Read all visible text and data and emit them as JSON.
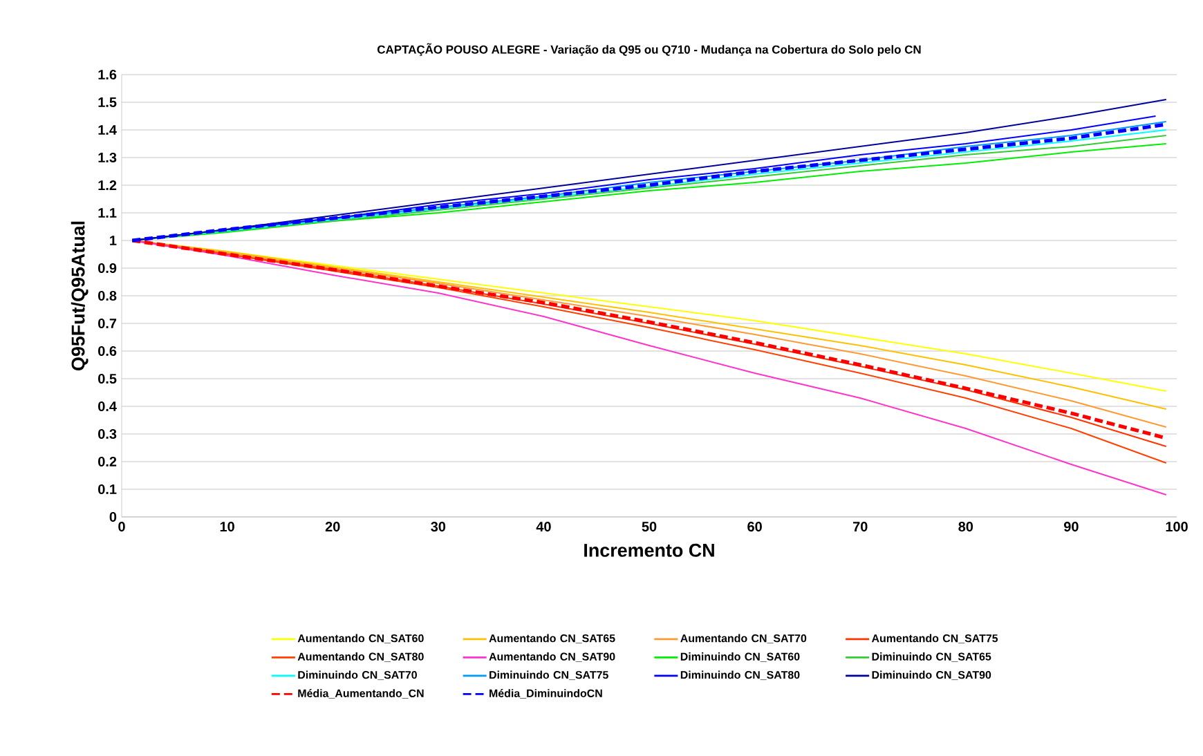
{
  "chart_data": {
    "type": "line",
    "title": "CAPTAÇÃO POUSO ALEGRE - Variação da Q95 ou Q710  - Mudança na Cobertura do Solo pelo CN",
    "xlabel": "Incremento CN",
    "ylabel": "Q95Fut/Q95Atual",
    "x": [
      1,
      10,
      20,
      30,
      40,
      50,
      60,
      70,
      80,
      90,
      99
    ],
    "series": [
      {
        "name": "Aumentando CN_SAT60",
        "color": "#ffff00",
        "values": [
          1,
          0.96,
          0.91,
          0.86,
          0.81,
          0.76,
          0.71,
          0.65,
          0.59,
          0.52,
          0.455
        ]
      },
      {
        "name": "Aumentando CN_SAT65",
        "color": "#ffc000",
        "values": [
          1,
          0.96,
          0.905,
          0.85,
          0.795,
          0.74,
          0.68,
          0.62,
          0.55,
          0.47,
          0.39
        ]
      },
      {
        "name": "Aumentando CN_SAT70",
        "color": "#ff9933",
        "values": [
          1,
          0.955,
          0.9,
          0.845,
          0.785,
          0.725,
          0.66,
          0.59,
          0.51,
          0.42,
          0.325
        ]
      },
      {
        "name": "Aumentando CN_SAT75",
        "color": "#ff3300",
        "values": [
          1,
          0.95,
          0.895,
          0.835,
          0.77,
          0.7,
          0.625,
          0.545,
          0.46,
          0.36,
          0.255
        ]
      },
      {
        "name": "Aumentando CN_SAT80",
        "color": "#ff4000",
        "values": [
          1,
          0.95,
          0.89,
          0.83,
          0.76,
          0.685,
          0.605,
          0.52,
          0.43,
          0.32,
          0.195
        ]
      },
      {
        "name": "Aumentando CN_SAT90",
        "color": "#ff33cc",
        "values": [
          1,
          0.945,
          0.875,
          0.81,
          0.725,
          0.62,
          0.52,
          0.43,
          0.32,
          0.19,
          0.08
        ]
      },
      {
        "name": "Diminuindo CN_SAT60",
        "color": "#00ee00",
        "values": [
          1,
          1.03,
          1.07,
          1.1,
          1.14,
          1.18,
          1.21,
          1.25,
          1.28,
          1.32,
          1.35
        ]
      },
      {
        "name": "Diminuindo CN_SAT65",
        "color": "#33cc33",
        "values": [
          1,
          1.035,
          1.07,
          1.11,
          1.15,
          1.19,
          1.23,
          1.27,
          1.31,
          1.34,
          1.38
        ]
      },
      {
        "name": "Diminuindo CN_SAT70",
        "color": "#00ffff",
        "values": [
          1,
          1.035,
          1.075,
          1.115,
          1.155,
          1.195,
          1.24,
          1.28,
          1.32,
          1.36,
          1.4
        ]
      },
      {
        "name": "Diminuindo CN_SAT75",
        "color": "#0099ff",
        "values": [
          1,
          1.04,
          1.08,
          1.12,
          1.16,
          1.21,
          1.25,
          1.29,
          1.34,
          1.38,
          1.43
        ]
      },
      {
        "name": "Diminuindo CN_SAT80",
        "color": "#0000ff",
        "x": [
          1,
          10,
          20,
          30,
          40,
          50,
          60,
          70,
          80,
          90,
          98
        ],
        "values": [
          1,
          1.04,
          1.08,
          1.13,
          1.17,
          1.22,
          1.26,
          1.31,
          1.35,
          1.4,
          1.45
        ]
      },
      {
        "name": "Diminuindo CN_SAT90",
        "color": "#000099",
        "values": [
          1,
          1.04,
          1.09,
          1.14,
          1.19,
          1.24,
          1.29,
          1.34,
          1.39,
          1.45,
          1.51
        ]
      },
      {
        "name": "Média_Aumentando_CN",
        "color": "#ff0000",
        "line_style": "dashed",
        "values": [
          1,
          0.95,
          0.895,
          0.835,
          0.775,
          0.705,
          0.63,
          0.55,
          0.465,
          0.375,
          0.285
        ]
      },
      {
        "name": "Média_DiminuindoCN",
        "color": "#0000ff",
        "line_style": "dashed",
        "values": [
          1,
          1.04,
          1.08,
          1.12,
          1.16,
          1.2,
          1.25,
          1.29,
          1.33,
          1.37,
          1.42
        ]
      }
    ],
    "xlim": [
      0,
      100
    ],
    "xticks": [
      0,
      10,
      20,
      30,
      40,
      50,
      60,
      70,
      80,
      90,
      100
    ],
    "ylim": [
      0,
      1.6
    ],
    "yticks": [
      0,
      0.1,
      0.2,
      0.3,
      0.4,
      0.5,
      0.6,
      0.7,
      0.8,
      0.9,
      1,
      1.1,
      1.2,
      1.3,
      1.4,
      1.5,
      1.6
    ],
    "grid": "y",
    "legend": "bottom"
  }
}
